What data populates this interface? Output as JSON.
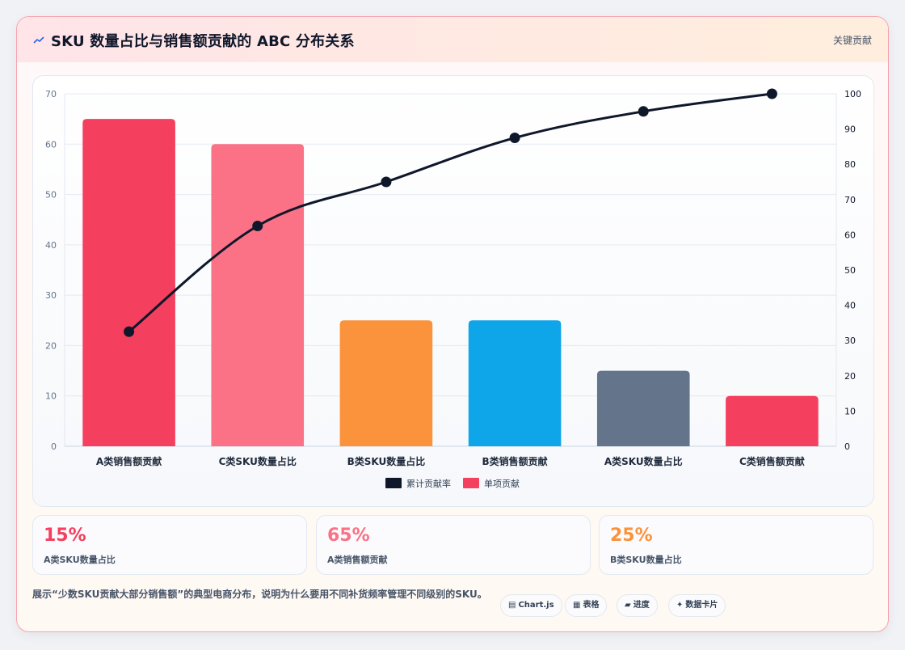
{
  "header": {
    "icon": "chart-line-icon",
    "title": "SKU 数量占比与销售额贡献的 ABC 分布关系",
    "tag": "关键贡献"
  },
  "chart_data": {
    "type": "bar",
    "categories": [
      "A类销售额贡献",
      "C类SKU数量占比",
      "B类SKU数量占比",
      "B类销售额贡献",
      "A类SKU数量占比",
      "C类销售额贡献"
    ],
    "series": [
      {
        "name": "单项贡献",
        "type": "bar",
        "axis": "left",
        "values": [
          65,
          60,
          25,
          25,
          15,
          10
        ],
        "colors": [
          "#f43f5e",
          "#fb7185",
          "#fb923c",
          "#0ea5e9",
          "#64748b",
          "#f43f5e"
        ]
      },
      {
        "name": "累计贡献率",
        "type": "line",
        "axis": "right",
        "color": "#0f172a",
        "values": [
          32.5,
          62.5,
          75,
          87.5,
          95,
          100
        ]
      }
    ],
    "y_left": {
      "min": 0,
      "max": 70,
      "ticks": [
        0,
        10,
        20,
        30,
        40,
        50,
        60,
        70
      ]
    },
    "y_right": {
      "min": 0,
      "max": 100,
      "ticks": [
        0,
        10,
        20,
        30,
        40,
        50,
        60,
        70,
        80,
        90,
        100
      ]
    },
    "grid": true,
    "legend": {
      "position": "bottom",
      "items": [
        {
          "name": "累计贡献率",
          "color": "#0f172a"
        },
        {
          "name": "单项贡献",
          "color": "#f43f5e"
        }
      ]
    }
  },
  "stats": [
    {
      "value": "15%",
      "label": "A类SKU数量占比",
      "color": "#f43f5e"
    },
    {
      "value": "65%",
      "label": "A类销售额贡献",
      "color": "#fb7185"
    },
    {
      "value": "25%",
      "label": "B类SKU数量占比",
      "color": "#fb923c"
    }
  ],
  "footer": {
    "description": "展示“少数SKU贡献大部分销售额”的典型电商分布，说明为什么要用不同补货频率管理不同级别的SKU。",
    "pills": [
      {
        "icon": "▤",
        "label": "Chart.js"
      },
      {
        "icon": "▦",
        "label": "表格"
      },
      {
        "icon": "▰",
        "label": "进度"
      },
      {
        "icon": "✦",
        "label": "数据卡片"
      }
    ]
  }
}
